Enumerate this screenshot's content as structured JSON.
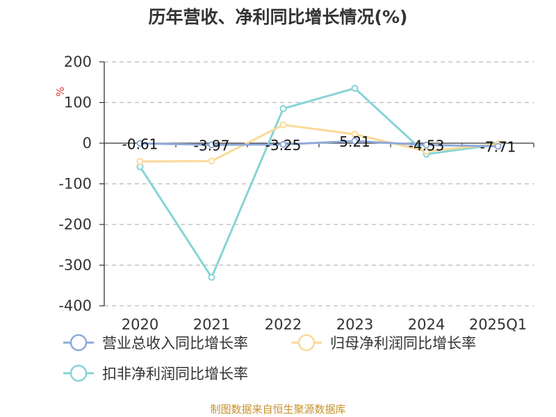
{
  "chart_data": {
    "type": "line",
    "title": "历年营收、净利同比增长情况(%)",
    "ylabel": "%",
    "categories": [
      "2020",
      "2021",
      "2022",
      "2023",
      "2024",
      "2025Q1"
    ],
    "ylim": [
      -400,
      200
    ],
    "yticks": [
      200,
      100,
      0,
      -100,
      -200,
      -300,
      -400
    ],
    "grid": true,
    "legend_position": "bottom",
    "series": [
      {
        "name": "营业总收入同比增长率",
        "values": [
          -0.61,
          -3.97,
          -3.25,
          5.21,
          -4.53,
          -7.71
        ],
        "color": "#8eaad8",
        "data_labels": [
          "-0.61",
          "-3.97",
          "-3.25",
          "5.21",
          "-4.53",
          "-7.71"
        ]
      },
      {
        "name": "归母净利润同比增长率",
        "values": [
          -45,
          -44,
          45,
          22,
          -20,
          -2
        ],
        "color": "#fbd997"
      },
      {
        "name": "扣非净利润同比增长率",
        "values": [
          -58,
          -330,
          85,
          135,
          -27,
          -3
        ],
        "color": "#87d4d6"
      }
    ]
  },
  "source_text": "制图数据来自恒生聚源数据库",
  "colors": {
    "axis": "#333333",
    "grid": "#bbbbbb",
    "unit": "#e03030",
    "source": "#c8912a"
  }
}
